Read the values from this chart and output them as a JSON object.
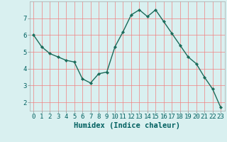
{
  "x": [
    0,
    1,
    2,
    3,
    4,
    5,
    6,
    7,
    8,
    9,
    10,
    11,
    12,
    13,
    14,
    15,
    16,
    17,
    18,
    19,
    20,
    21,
    22,
    23
  ],
  "y": [
    6.0,
    5.3,
    4.9,
    4.7,
    4.5,
    4.4,
    3.4,
    3.15,
    3.7,
    3.8,
    5.3,
    6.2,
    7.2,
    7.5,
    7.1,
    7.5,
    6.8,
    6.1,
    5.4,
    4.7,
    4.3,
    3.5,
    2.8,
    1.7
  ],
  "line_color": "#1a6b5a",
  "marker": "D",
  "marker_size": 2.2,
  "bg_color": "#d9f0f0",
  "grid_color": "#f08080",
  "xlabel": "Humidex (Indice chaleur)",
  "xlabel_fontsize": 7.5,
  "tick_fontsize": 6.5,
  "xlim": [
    -0.5,
    23.5
  ],
  "ylim": [
    1.5,
    8.0
  ],
  "yticks": [
    2,
    3,
    4,
    5,
    6,
    7
  ],
  "xticks": [
    0,
    1,
    2,
    3,
    4,
    5,
    6,
    7,
    8,
    9,
    10,
    11,
    12,
    13,
    14,
    15,
    16,
    17,
    18,
    19,
    20,
    21,
    22,
    23
  ],
  "linewidth": 1.0,
  "label_color": "#006060"
}
